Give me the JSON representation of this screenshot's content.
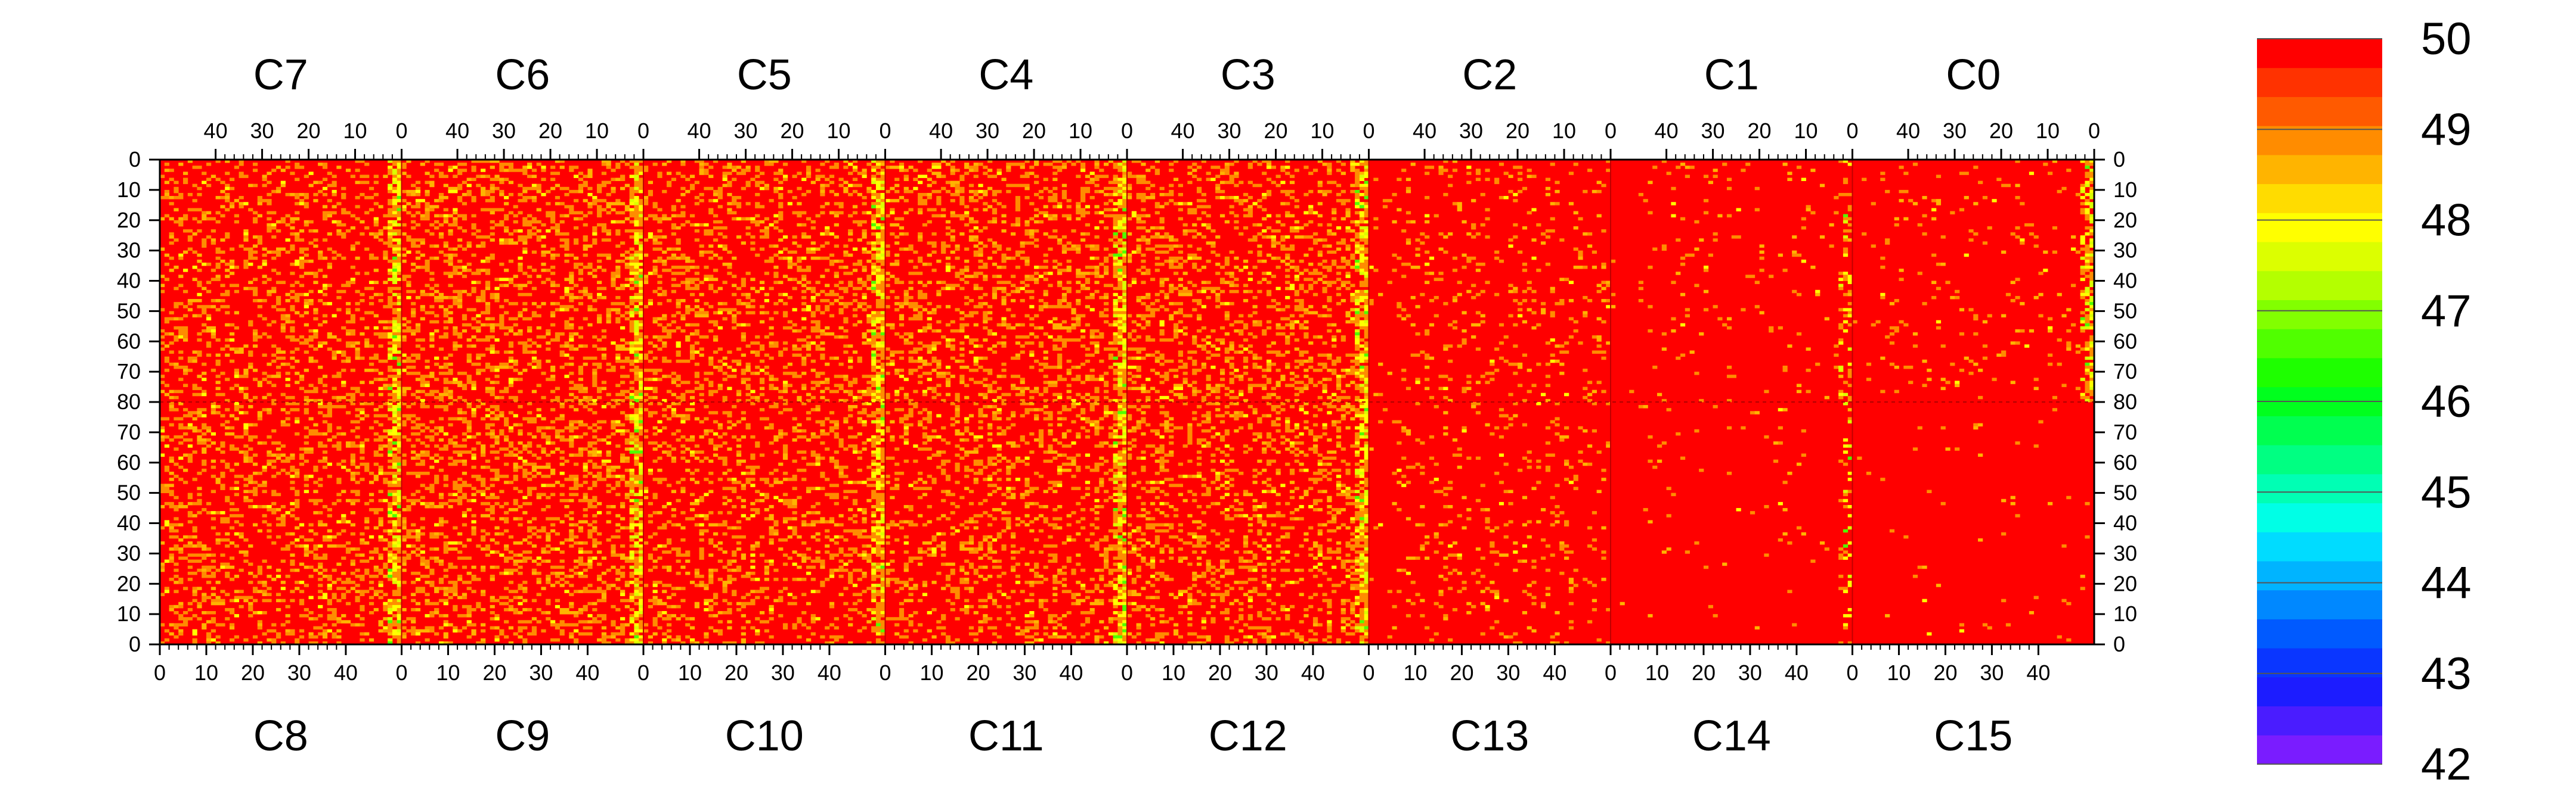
{
  "chart_data": {
    "type": "heatmap",
    "title": "",
    "chips_top": [
      "C7",
      "C6",
      "C5",
      "C4",
      "C3",
      "C2",
      "C1",
      "C0"
    ],
    "chips_bottom": [
      "C8",
      "C9",
      "C10",
      "C11",
      "C12",
      "C13",
      "C14",
      "C15"
    ],
    "top_column_ticks": [
      "40",
      "30",
      "20",
      "10",
      "0"
    ],
    "bottom_column_ticks": [
      "0",
      "10",
      "20",
      "30",
      "40"
    ],
    "row_ticks_top_half": [
      "0",
      "10",
      "20",
      "30",
      "40",
      "50",
      "60",
      "70",
      "80"
    ],
    "row_ticks_bottom_half": [
      "70",
      "60",
      "50",
      "40",
      "30",
      "20",
      "10",
      "0"
    ],
    "columns_per_chip": 52,
    "rows_per_half": 80,
    "colorbar": {
      "min": 42,
      "max": 50,
      "tick_labels": [
        "50",
        "49",
        "48",
        "47",
        "46",
        "45",
        "44",
        "43",
        "42"
      ],
      "colors": [
        "#7a1cff",
        "#4a1cff",
        "#1c1cff",
        "#0a36ff",
        "#005aff",
        "#0088ff",
        "#00b4ff",
        "#00dcff",
        "#00ffe6",
        "#00ffb4",
        "#00ff82",
        "#00ff50",
        "#00ff1e",
        "#1eff00",
        "#50ff00",
        "#82ff00",
        "#b4ff00",
        "#dcff00",
        "#ffff00",
        "#ffdc00",
        "#ffb400",
        "#ff8c00",
        "#ff5a00",
        "#ff3200",
        "#ff0000"
      ]
    },
    "background_value": 50,
    "typical_noise_values": [
      48,
      49
    ],
    "edge_column_values": [
      46,
      47,
      48
    ],
    "hot_edge_columns_note": "chip boundary columns show lower values (yellow/green); chips C1, C2, C13, C14, C15 interiors mostly uniform at maximum"
  }
}
